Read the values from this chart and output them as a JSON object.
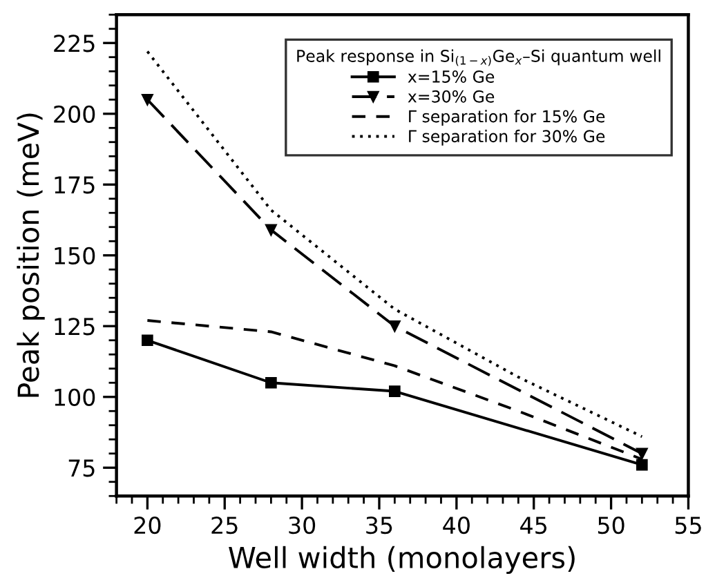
{
  "chart_data": {
    "type": "line",
    "xlabel": "Well width (monolayers)",
    "ylabel": "Peak position (meV)",
    "legend_title": "Peak response in Si$_{(1−x)}$Ge$_{x}$–Si quantum well",
    "xlim": [
      18,
      55
    ],
    "ylim": [
      65,
      235
    ],
    "xticks": [
      20,
      25,
      30,
      35,
      40,
      45,
      50,
      55
    ],
    "yticks": [
      75,
      100,
      125,
      150,
      175,
      200,
      225
    ],
    "grid": false,
    "legend": "top right",
    "series": [
      {
        "name": "x=15% Ge",
        "color": "#000000",
        "marker": "square",
        "line_style": "solid",
        "x": [
          20,
          28,
          36,
          52
        ],
        "values": [
          120,
          105,
          102,
          76
        ]
      },
      {
        "name": "x=30% Ge",
        "color": "#000000",
        "marker": "triangle",
        "line_style": "dashed",
        "x": [
          20,
          28,
          36,
          52
        ],
        "values": [
          205,
          159,
          125,
          80
        ]
      },
      {
        "name": "Γ separation for 15% Ge",
        "color": "#000000",
        "marker": "none",
        "line_style": "dashed",
        "x": [
          20,
          28,
          36,
          44,
          52
        ],
        "values": [
          127,
          123,
          111,
          95,
          78
        ]
      },
      {
        "name": "Γ separation for 30% Ge",
        "color": "#000000",
        "marker": "none",
        "line_style": "dotted",
        "x": [
          20,
          28,
          36,
          44,
          52
        ],
        "values": [
          222,
          166,
          131,
          107,
          86
        ]
      }
    ]
  }
}
